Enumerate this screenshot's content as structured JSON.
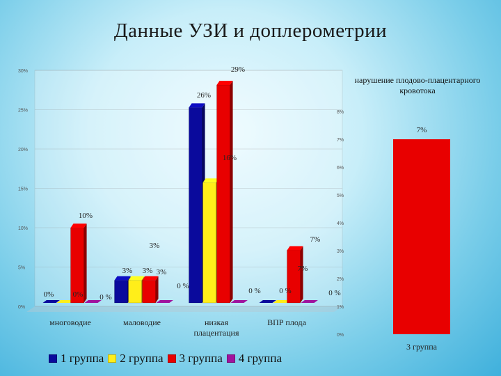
{
  "title": "Данные УЗИ и доплерометрии",
  "colors": {
    "group1": "#0a0a9c",
    "group2": "#ffee1a",
    "group3": "#e80000",
    "group4": "#a0139e"
  },
  "chart_data": [
    {
      "type": "bar",
      "categories": [
        "многоводие",
        "маловодие",
        "низкая плацентация",
        "ВПР плода"
      ],
      "series": [
        {
          "name": "1 группа",
          "values": [
            0,
            3,
            26,
            0
          ]
        },
        {
          "name": "2 группа",
          "values": [
            0,
            3,
            16,
            0
          ]
        },
        {
          "name": "3 группа",
          "values": [
            10,
            3,
            29,
            7
          ]
        },
        {
          "name": "4 группа",
          "values": [
            0,
            0,
            0,
            0
          ]
        }
      ],
      "data_labels": [
        {
          "text": "0%",
          "category": 0,
          "series": 0
        },
        {
          "text": "0%",
          "category": 0,
          "series": 1
        },
        {
          "text": "10%",
          "category": 0,
          "series": 2
        },
        {
          "text": "0 %",
          "category": 0,
          "series": 3
        },
        {
          "text": "3%",
          "category": 1,
          "series": 0
        },
        {
          "text": "3%",
          "category": 1,
          "series": 1
        },
        {
          "text": "3%",
          "category": 1,
          "series": 2
        },
        {
          "text": "0 %",
          "category": 1,
          "series": 3
        },
        {
          "text": "26%",
          "category": 2,
          "series": 0
        },
        {
          "text": "16%",
          "category": 2,
          "series": 1
        },
        {
          "text": "29%",
          "category": 2,
          "series": 2
        },
        {
          "text": "0 %",
          "category": 2,
          "series": 3
        },
        {
          "text": "0 %",
          "category": 3,
          "series": 0
        },
        {
          "text": "0 %",
          "category": 3,
          "series": 1
        },
        {
          "text": "7%",
          "category": 3,
          "series": 2
        },
        {
          "text": "0 %",
          "category": 3,
          "series": 3
        }
      ],
      "y_ticks": [
        "0%",
        "5%",
        "10%",
        "15%",
        "20%",
        "25%",
        "30%"
      ],
      "ylim": [
        0,
        30
      ],
      "legend": [
        "1 группа",
        "2 группа",
        "3 группа",
        "4 группа"
      ],
      "legend_position": "bottom-left",
      "style": "3d-column"
    },
    {
      "type": "bar",
      "title": "нарушение плодово-плацентарного кровотока",
      "categories": [
        "3 группа"
      ],
      "values": [
        7
      ],
      "data_label": "7%",
      "y_ticks": [
        "0%",
        "1%",
        "2%",
        "3%",
        "4%",
        "5%",
        "6%",
        "7%",
        "8%"
      ],
      "ylim": [
        0,
        8
      ]
    }
  ],
  "labels": {
    "stray_labels": [
      "7%",
      "3%"
    ]
  }
}
